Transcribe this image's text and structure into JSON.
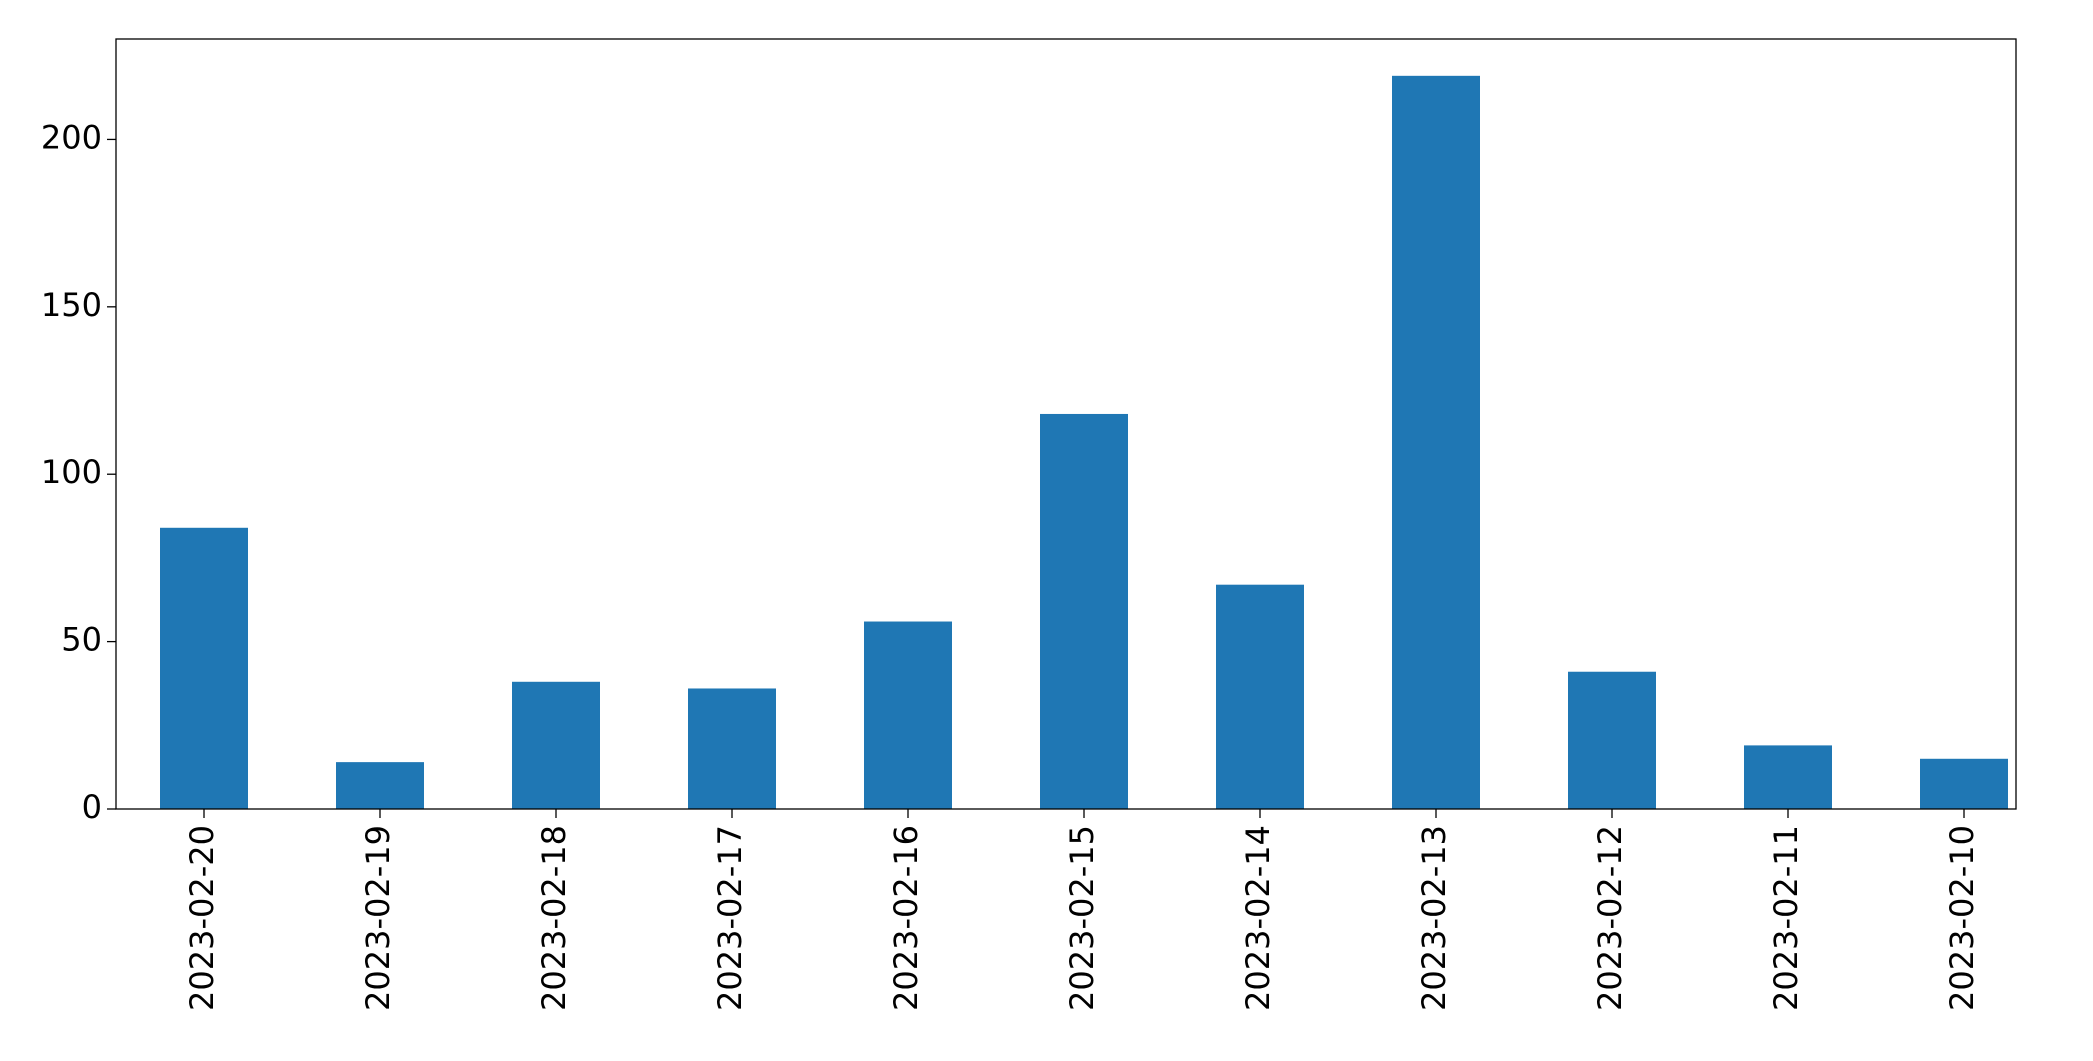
{
  "chart_data": {
    "type": "bar",
    "categories": [
      "2023-02-20",
      "2023-02-19",
      "2023-02-18",
      "2023-02-17",
      "2023-02-16",
      "2023-02-15",
      "2023-02-14",
      "2023-02-13",
      "2023-02-12",
      "2023-02-11",
      "2023-02-10"
    ],
    "values": [
      84,
      14,
      38,
      36,
      56,
      118,
      67,
      219,
      41,
      19,
      15
    ],
    "color": "#1f77b4",
    "ylim": [
      0,
      230
    ],
    "yticks": [
      0,
      50,
      100,
      150,
      200
    ],
    "grid": false
  }
}
